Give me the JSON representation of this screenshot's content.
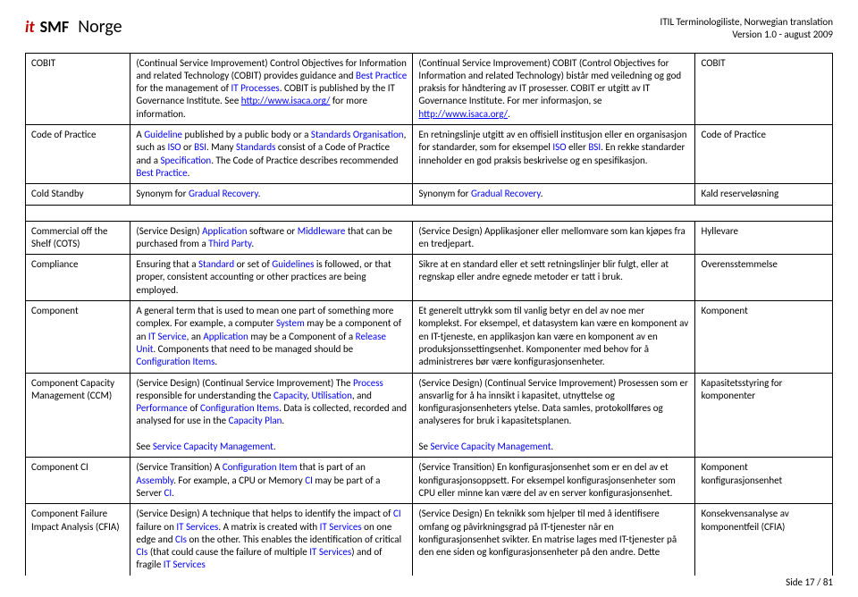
{
  "header": {
    "logo_it": "it",
    "logo_smf": "SMF",
    "logo_norge": "Norge",
    "title_line1": "ITIL Terminologiliste, Norwegian translation",
    "title_line2": "Version 1.0 - august 2009"
  },
  "rows": [
    {
      "term_en": "COBIT",
      "def_en": "(Continual Service Improvement) Control Objectives for Information and related Technology (COBIT) provides guidance and <span class='link'>Best Practice</span> for the management of <span class='link'>IT Processes</span>. COBIT is published by the IT Governance Institute. See <span class='link underline'>http://www.isaca.org/</span> for more information.",
      "def_no": "(Continual Service Improvement) COBIT (Control Objectives for Information and related Technology) bistår med veiledning og god praksis for håndtering av IT prosesser. COBIT er utgitt av IT Governance Institute. For mer informasjon, se <span class='link underline'>http://www.isaca.org/</span>.",
      "term_no": "COBIT"
    },
    {
      "term_en": "Code of Practice",
      "def_en": "A <span class='link'>Guideline</span> published by a public body or a <span class='link'>Standards Organisation</span>, such as <span class='link'>ISO</span> or <span class='link'>BSI</span>. Many <span class='link'>Standards</span> consist of a Code of Practice and a <span class='link'>Specification</span>. The Code of Practice describes recommended <span class='link'>Best Practice</span>.",
      "def_no": "En retningslinje utgitt av en offisiell institusjon eller en organisasjon for standarder, som for eksempel <span class='link'>ISO</span> eller <span class='link'>BSI</span>. En rekke standarder inneholder en god praksis beskrivelse og en spesifikasjon.",
      "term_no": "Code of Practice"
    },
    {
      "term_en": "Cold Standby",
      "def_en": "Synonym for <span class='link'>Gradual Recovery</span>.",
      "def_no": "Synonym for <span class='link'>Gradual Recovery</span>.",
      "term_no": "Kald reserveløsning"
    }
  ],
  "rows2": [
    {
      "term_en": "Commercial off the Shelf (COTS)",
      "def_en": "(Service Design) <span class='link'>Application</span> software or <span class='link'>Middleware</span> that can be purchased from a <span class='link'>Third Party</span>.",
      "def_no": "(Service Design) Applikasjoner eller mellomvare som kan kjøpes fra en tredjepart.",
      "term_no": "Hyllevare"
    },
    {
      "term_en": "Compliance",
      "def_en": "Ensuring that a <span class='link'>Standard</span> or set of <span class='link'>Guidelines</span> is followed, or that proper, consistent accounting or other practices are being employed.",
      "def_no": "Sikre at en standard eller et sett retningslinjer blir fulgt, eller at regnskap eller andre egnede metoder er tatt i bruk.",
      "term_no": "Overensstemmelse"
    },
    {
      "term_en": "Component",
      "def_en": "A general term that is used to mean one part of something more complex. For example, a computer <span class='link'>System</span> may be a component of an <span class='link'>IT Service</span>, an <span class='link'>Application</span> may be a Component of a <span class='link'>Release Unit</span>. Components that need to be managed should be <span class='link'>Configuration Items</span>.",
      "def_no": "Et generelt uttrykk som til vanlig betyr en del av noe mer komplekst. For eksempel, et datasystem kan være en komponent av en IT-tjeneste, en applikasjon kan være en komponent av en produksjonssettingsenhet. Komponenter med behov for å administreres bør være konfigurasjonsenheter.",
      "term_no": "Komponent"
    },
    {
      "term_en": "Component Capacity Management (CCM)",
      "def_en": "(Service Design) (Continual Service Improvement) The <span class='link'>Process</span> responsible for understanding the <span class='link'>Capacity</span>, <span class='link'>Utilisation</span>, and <span class='link'>Performance</span> of <span class='link'>Configuration Items</span>. Data is collected, recorded and analysed for use in the <span class='link'>Capacity Plan</span>.<br><br>See <span class='link'>Service Capacity Management</span>.",
      "def_no": "(Service Design) (Continual Service Improvement) Prosessen som er ansvarlig for å ha innsikt i kapasitet, utnyttelse og konfigurasjonsenheters ytelse. Data samles, protokollføres og analyseres for bruk i kapasitetsplanen.<br><br>Se <span class='link'>Service Capacity Management</span>.",
      "term_no": "Kapasitetsstyring for komponenter"
    },
    {
      "term_en": "Component CI",
      "def_en": "(Service Transition) A <span class='link'>Configuration Item</span> that is part of an <span class='link'>Assembly</span>. For example, a CPU or Memory <span class='link'>CI</span> may be part of a Server <span class='link'>CI</span>.",
      "def_no": "(Service Transition) En konfigurasjonsenhet som er en del av et konfigurasjonsoppsett. For eksempel konfigurasjonsenheter som CPU eller minne kan være del av en server konfigurasjonsenhet.",
      "term_no": "Komponent konfigurasjonsenhet"
    },
    {
      "term_en": "Component Failure Impact Analysis (CFIA)",
      "def_en": "(Service Design) A technique that helps to identify the impact of <span class='link'>CI</span> failure on <span class='link'>IT Services</span>. A matrix is created with <span class='link'>IT Services</span> on one edge and <span class='link'>CIs</span> on the other. This enables the identification of critical <span class='link'>CIs</span> (that could cause the failure of multiple <span class='link'>IT Services</span>) and of fragile <span class='link'>IT Services</span>",
      "def_no": "(Service Design) En teknikk som hjelper til med å identifisere omfang og påvirkningsgrad på IT-tjenester når en konfigurasjonsenhet svikter. En matrise lages med IT-tjenester på den ene siden og konfigurasjonsenheter på den andre. Dette",
      "term_no": "Konsekvensanalyse av komponentfeil (CFIA)",
      "open_bottom": true
    }
  ],
  "footer": "Side 17 / 81"
}
